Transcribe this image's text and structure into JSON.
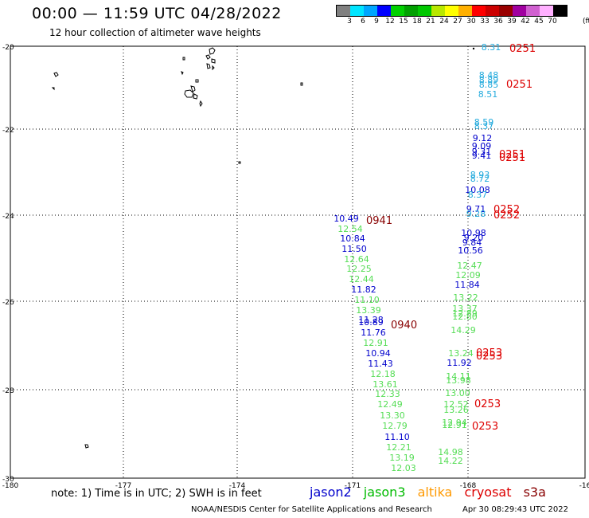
{
  "title": "00:00 — 11:59 UTC 04/28/2022",
  "subtitle": "12 hour collection of altimeter wave heights",
  "scale": {
    "unit": "(ft)",
    "ticks": [
      "3",
      "6",
      "9",
      "12",
      "15",
      "18",
      "21",
      "24",
      "27",
      "30",
      "33",
      "36",
      "39",
      "42",
      "45",
      "70"
    ],
    "colors": [
      "#808080",
      "#00e5ff",
      "#00a6ff",
      "#0000ff",
      "#00d000",
      "#00a000",
      "#00c800",
      "#b8e800",
      "#ffff00",
      "#ffb000",
      "#ff0000",
      "#cc0000",
      "#990000",
      "#a000a0",
      "#d060d0",
      "#ffb0ff",
      "#000000"
    ]
  },
  "axes": {
    "lat_labels": [
      "-20",
      "-22",
      "-24",
      "-26",
      "-28",
      "-30"
    ],
    "lon_labels": [
      "-180",
      "-177",
      "-174",
      "-171",
      "-168",
      "-16"
    ]
  },
  "note": "note: 1) Time is in UTC; 2) SWH is in feet",
  "legend": [
    {
      "name": "jason2",
      "color": "#0000cc"
    },
    {
      "name": "jason3",
      "color": "#00bb00"
    },
    {
      "name": "altika",
      "color": "#ff9900"
    },
    {
      "name": "cryosat",
      "color": "#dd0000"
    },
    {
      "name": "s3a",
      "color": "#880000"
    }
  ],
  "credit": "NOAA/NESDIS Center for Satellite Applications and Research",
  "timestamp": "Apr 30 08:29:43 UTC 2022",
  "track_a": [
    {
      "v": "10.49",
      "c": "#0000cc"
    },
    {
      "v": "12.54",
      "c": "#55dd55"
    },
    {
      "v": "10.84",
      "c": "#0000cc"
    },
    {
      "v": "11.50",
      "c": "#0000cc"
    },
    {
      "v": "12.64",
      "c": "#55dd55"
    },
    {
      "v": "12.25",
      "c": "#55dd55"
    },
    {
      "v": "12.44",
      "c": "#55dd55"
    },
    {
      "v": "11.82",
      "c": "#0000cc"
    },
    {
      "v": "11.10",
      "c": "#55dd55"
    },
    {
      "v": "13.39",
      "c": "#55dd55"
    },
    {
      "v": "11.28",
      "c": "#0000cc"
    },
    {
      "v": "10.89",
      "c": "#0000cc"
    },
    {
      "v": "11.76",
      "c": "#0000cc"
    },
    {
      "v": "12.91",
      "c": "#55dd55"
    },
    {
      "v": "10.94",
      "c": "#0000cc"
    },
    {
      "v": "11.43",
      "c": "#0000cc"
    },
    {
      "v": "12.18",
      "c": "#55dd55"
    },
    {
      "v": "13.61",
      "c": "#55dd55"
    },
    {
      "v": "12.33",
      "c": "#55dd55"
    },
    {
      "v": "12.49",
      "c": "#55dd55"
    },
    {
      "v": "13.30",
      "c": "#55dd55"
    },
    {
      "v": "12.79",
      "c": "#55dd55"
    },
    {
      "v": "11.10",
      "c": "#0000cc"
    },
    {
      "v": "12.21",
      "c": "#55dd55"
    },
    {
      "v": "13.19",
      "c": "#55dd55"
    },
    {
      "v": "12.03",
      "c": "#55dd55"
    }
  ],
  "track_a_times": [
    {
      "t": "0941",
      "c": "#880000"
    },
    {
      "t": "0940",
      "c": "#880000"
    }
  ],
  "track_b": [
    {
      "v": "8.31",
      "c": "#22aadd"
    },
    {
      "v": "8.48",
      "c": "#22aadd"
    },
    {
      "v": "8.89",
      "c": "#22aadd"
    },
    {
      "v": "8.85",
      "c": "#22aadd"
    },
    {
      "v": "8.51",
      "c": "#22aadd"
    },
    {
      "v": "8.59",
      "c": "#22aadd"
    },
    {
      "v": "8.37",
      "c": "#22aadd"
    },
    {
      "v": "9.12",
      "c": "#0000cc"
    },
    {
      "v": "9.09",
      "c": "#0000cc"
    },
    {
      "v": "9.31",
      "c": "#0000cc"
    },
    {
      "v": "9.41",
      "c": "#0000cc"
    },
    {
      "v": "8.93",
      "c": "#22aadd"
    },
    {
      "v": "8.72",
      "c": "#22aadd"
    },
    {
      "v": "10.08",
      "c": "#0000cc"
    },
    {
      "v": "8.37",
      "c": "#22aadd"
    },
    {
      "v": "9.71",
      "c": "#0000cc"
    },
    {
      "v": "9.28",
      "c": "#22aadd"
    },
    {
      "v": "10.98",
      "c": "#0000cc"
    },
    {
      "v": "9.20",
      "c": "#0000cc"
    },
    {
      "v": "9.84",
      "c": "#0000cc"
    },
    {
      "v": "10.56",
      "c": "#0000cc"
    },
    {
      "v": "12.47",
      "c": "#55dd55"
    },
    {
      "v": "12.09",
      "c": "#55dd55"
    },
    {
      "v": "11.84",
      "c": "#0000cc"
    },
    {
      "v": "13.22",
      "c": "#55dd55"
    },
    {
      "v": "13.37",
      "c": "#55dd55"
    },
    {
      "v": "12.89",
      "c": "#55dd55"
    },
    {
      "v": "12.80",
      "c": "#55dd55"
    },
    {
      "v": "14.29",
      "c": "#55dd55"
    },
    {
      "v": "13.24",
      "c": "#55dd55"
    },
    {
      "v": "11.92",
      "c": "#0000cc"
    },
    {
      "v": "14.11",
      "c": "#55dd55"
    },
    {
      "v": "13.98",
      "c": "#55dd55"
    },
    {
      "v": "13.00",
      "c": "#55dd55"
    },
    {
      "v": "12.52",
      "c": "#55dd55"
    },
    {
      "v": "13.26",
      "c": "#55dd55"
    },
    {
      "v": "12.94",
      "c": "#55dd55"
    },
    {
      "v": "12.91",
      "c": "#55dd55"
    },
    {
      "v": "14.98",
      "c": "#55dd55"
    },
    {
      "v": "14.22",
      "c": "#55dd55"
    }
  ],
  "track_b_times": [
    {
      "t": "0251",
      "c": "#dd0000"
    },
    {
      "t": "0251",
      "c": "#dd0000"
    },
    {
      "t": "0251",
      "c": "#dd0000"
    },
    {
      "t": "0251",
      "c": "#dd0000"
    },
    {
      "t": "0252",
      "c": "#dd0000"
    },
    {
      "t": "0252",
      "c": "#dd0000"
    },
    {
      "t": "0253",
      "c": "#dd0000"
    },
    {
      "t": "0253",
      "c": "#dd0000"
    },
    {
      "t": "0253",
      "c": "#dd0000"
    },
    {
      "t": "0253",
      "c": "#dd0000"
    }
  ]
}
